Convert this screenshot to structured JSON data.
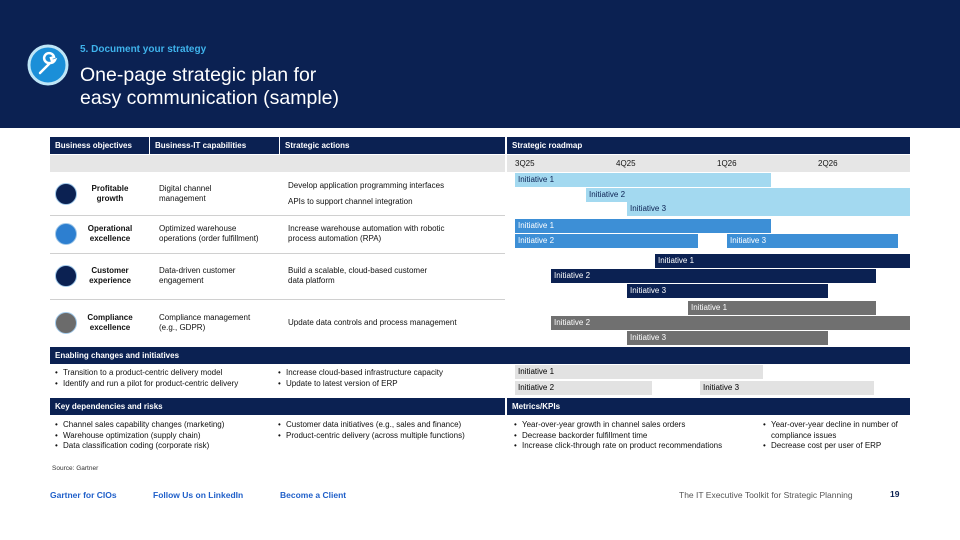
{
  "header": {
    "step": "5. Document your strategy",
    "title": [
      "One-page strategic plan for",
      "easy communication (sample)"
    ]
  },
  "table": {
    "columns": [
      "Business objectives",
      "Business-IT capabilities",
      "Strategic actions",
      "Strategic roadmap"
    ],
    "quarters": [
      "3Q25",
      "4Q25",
      "1Q26",
      "2Q26"
    ],
    "rows": [
      {
        "objective": [
          "Profitable",
          "growth"
        ],
        "capability": [
          "Digital channel",
          "management"
        ],
        "actions": [
          "Develop application programming interfaces",
          "APIs to support channel integration"
        ],
        "initiatives": [
          "Initiative 1",
          "Initiative 2",
          "Initiative 3"
        ]
      },
      {
        "objective": [
          "Operational",
          "excellence"
        ],
        "capability": [
          "Optimized warehouse",
          "operations (order fulfillment)"
        ],
        "actions": [
          "Increase warehouse automation with robotic",
          "process automation (RPA)"
        ],
        "initiatives": [
          "Initiative 1",
          "Initiative 2",
          "Initiative 3"
        ]
      },
      {
        "objective": [
          "Customer",
          "experience"
        ],
        "capability": [
          "Data-driven customer",
          "engagement"
        ],
        "actions": [
          "Build a scalable, cloud-based customer",
          "data platform"
        ],
        "initiatives": [
          "Initiative 1",
          "Initiative 2",
          "Initiative 3"
        ]
      },
      {
        "objective": [
          "Compliance",
          "excellence"
        ],
        "capability": [
          "Compliance management",
          "(e.g., GDPR)"
        ],
        "actions": [
          "Update data controls and process management"
        ],
        "initiatives": [
          "Initiative 1",
          "Initiative 2",
          "Initiative 3"
        ]
      }
    ]
  },
  "enabling": {
    "title": "Enabling changes and initiatives",
    "left": [
      "Transition to a product-centric delivery model",
      "Identify and run a pilot for product-centric delivery"
    ],
    "right": [
      "Increase cloud-based infrastructure capacity",
      "Update to latest version of ERP"
    ],
    "initiatives": [
      "Initiative 1",
      "Initiative 2",
      "Initiative 3"
    ]
  },
  "dependencies": {
    "title": "Key dependencies and risks",
    "left": [
      "Channel sales capability changes (marketing)",
      "Warehouse optimization (supply chain)",
      "Data classification coding (corporate risk)"
    ],
    "right": [
      "Customer data initiatives (e.g., sales and finance)",
      "Product-centric delivery (across multiple functions)"
    ]
  },
  "metrics": {
    "title": "Metrics/KPIs",
    "left": [
      "Year-over-year growth in channel sales orders",
      "Decrease backorder fulfillment time",
      "Increase click-through rate on product recommendations"
    ],
    "right": [
      "Year-over-year decline in number of compliance issues",
      "Decrease cost per user of ERP"
    ]
  },
  "source": "Source: Gartner",
  "footer": {
    "links": [
      "Gartner for CIOs",
      "Follow Us on LinkedIn",
      "Become a Client"
    ],
    "toolkit": "The IT Executive Toolkit for Strategic Planning",
    "page": "19"
  }
}
